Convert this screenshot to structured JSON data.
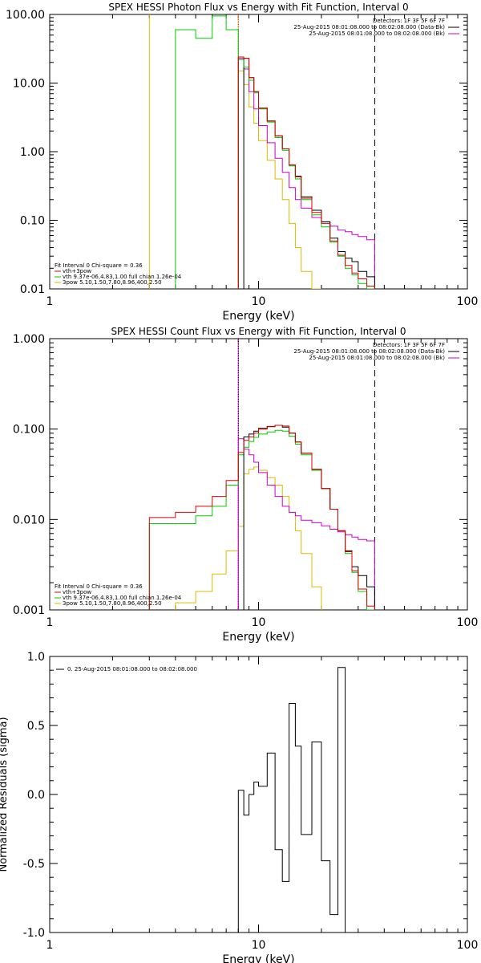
{
  "chart_data": [
    {
      "type": "line",
      "title": "SPEX HESSI Photon Flux vs Energy with Fit Function, Interval 0",
      "xlabel": "Energy (keV)",
      "ylabel": "",
      "x_scale": "log",
      "y_scale": "log",
      "xlim": [
        1,
        100
      ],
      "ylim": [
        0.01,
        100
      ],
      "x_ticks": [
        {
          "v": 1,
          "label": "1"
        },
        {
          "v": 10,
          "label": "10"
        },
        {
          "v": 100,
          "label": "100"
        }
      ],
      "y_ticks": [
        {
          "v": 0.01,
          "label": "0.01"
        },
        {
          "v": 0.1,
          "label": "0.10"
        },
        {
          "v": 1,
          "label": "1.00"
        },
        {
          "v": 10,
          "label": "10.00"
        },
        {
          "v": 100,
          "label": "100.00"
        }
      ],
      "legend_topright": [
        {
          "text": "Detectors: 1F 3F 5F 6F 7F",
          "color": ""
        },
        {
          "text": "25-Aug-2015 08:01:08.000 to 08:02:08.000 (Data-Bk)",
          "color": "#000000"
        },
        {
          "text": "25-Aug-2015 08:01:08.000 to 08:02:08.000 (Bk)",
          "color": "#cc00cc"
        }
      ],
      "legend_bottomleft": [
        {
          "text": "Fit Interval 0   Chi-square = 0.36",
          "color": ""
        },
        {
          "text": "vth+3pow",
          "color": "#dd0000"
        },
        {
          "text": "vth 9.37e-06,4.83,1.00   full chian 1.26e-04",
          "color": "#00cc00"
        },
        {
          "text": "3pow 5.10,1.50,7.80,8.96,400,2.50",
          "color": "#ddbb00"
        }
      ],
      "vlines": [
        {
          "x": 3.0,
          "color": "#ddbb00",
          "style": "solid"
        },
        {
          "x": 8.0,
          "color": "#ddbb00",
          "style": "solid"
        },
        {
          "x": 8.0,
          "color": "#cc00cc",
          "style": "dotted"
        },
        {
          "x": 36.0,
          "color": "#000000",
          "style": "dashed"
        }
      ],
      "series": [
        {
          "name": "",
          "color": "#00cc00",
          "edges": [
            4,
            5,
            6,
            7,
            8
          ],
          "values": [
            60,
            45,
            95,
            60
          ]
        },
        {
          "name": "",
          "color": "#ddbb00",
          "edges": [
            8,
            8.5,
            9,
            9.5,
            10,
            11,
            12,
            13,
            14,
            15,
            16,
            18,
            20
          ],
          "values": [
            15,
            9.5,
            4.5,
            2.6,
            1.45,
            0.75,
            0.4,
            0.2,
            0.09,
            0.04,
            0.018,
            0.01
          ]
        },
        {
          "name": "",
          "color": "#cc00cc",
          "edges": [
            8,
            8.5,
            9,
            9.5,
            10,
            11,
            12,
            13,
            14,
            15,
            16,
            18,
            20,
            22,
            24,
            26,
            28,
            30,
            33,
            36
          ],
          "values": [
            23,
            16,
            7.5,
            4.2,
            2.4,
            1.35,
            0.8,
            0.5,
            0.3,
            0.2,
            0.15,
            0.11,
            0.095,
            0.082,
            0.072,
            0.068,
            0.062,
            0.058,
            0.052
          ]
        },
        {
          "name": "",
          "color": "#000000",
          "edges": [
            8.5,
            9,
            9.5,
            10,
            11,
            12,
            13,
            14,
            15,
            16,
            18,
            20,
            22,
            24,
            26,
            28,
            30,
            33,
            36
          ],
          "values": [
            23,
            12,
            7.5,
            4.3,
            2.8,
            1.7,
            1.1,
            0.64,
            0.44,
            0.22,
            0.14,
            0.095,
            0.055,
            0.035,
            0.028,
            0.025,
            0.018,
            0.015
          ]
        },
        {
          "name": "",
          "color": "#00cc00",
          "edges": [
            8,
            8.5,
            9,
            9.5,
            10,
            11,
            12,
            13,
            14,
            15,
            16,
            18,
            20,
            22,
            24,
            26,
            28,
            30,
            33,
            36
          ],
          "values": [
            22,
            17,
            11,
            7.2,
            4.2,
            2.7,
            1.6,
            1.05,
            0.62,
            0.4,
            0.2,
            0.12,
            0.08,
            0.048,
            0.03,
            0.02,
            0.016,
            0.012,
            0.01
          ]
        },
        {
          "name": "",
          "color": "#dd0000",
          "edges": [
            8,
            8.5,
            9,
            9.5,
            10,
            11,
            12,
            13,
            14,
            15,
            16,
            18,
            20,
            22,
            24,
            26,
            28,
            30,
            33,
            36
          ],
          "values": [
            24,
            23,
            12,
            7.5,
            4.3,
            2.8,
            1.7,
            1.1,
            0.64,
            0.43,
            0.21,
            0.13,
            0.09,
            0.05,
            0.031,
            0.022,
            0.017,
            0.014,
            0.011
          ]
        }
      ]
    },
    {
      "type": "line",
      "title": "SPEX HESSI Count Flux vs Energy with Fit Function, Interval 0",
      "xlabel": "Energy (keV)",
      "ylabel": "",
      "x_scale": "log",
      "y_scale": "log",
      "xlim": [
        1,
        100
      ],
      "ylim": [
        0.001,
        1
      ],
      "x_ticks": [
        {
          "v": 1,
          "label": "1"
        },
        {
          "v": 10,
          "label": "10"
        },
        {
          "v": 100,
          "label": "100"
        }
      ],
      "y_ticks": [
        {
          "v": 0.001,
          "label": "0.001"
        },
        {
          "v": 0.01,
          "label": "0.010"
        },
        {
          "v": 0.1,
          "label": "0.100"
        },
        {
          "v": 1,
          "label": "1.000"
        }
      ],
      "legend_topright": [
        {
          "text": "Detectors: 1F 3F 5F 6F 7F",
          "color": ""
        },
        {
          "text": "25-Aug-2015 08:01:08.000 to 08:02:08.000 (Data-Bk)",
          "color": "#000000"
        },
        {
          "text": "25-Aug-2015 08:01:08.000 to 08:02:08.000 (Bk)",
          "color": "#cc00cc"
        }
      ],
      "legend_bottomleft": [
        {
          "text": "Fit Interval 0   Chi-square = 0.36",
          "color": ""
        },
        {
          "text": "vth+3pow",
          "color": "#dd0000"
        },
        {
          "text": "vth 9.37e-06,4.83,1.00   full chian 1.26e-04",
          "color": "#00cc00"
        },
        {
          "text": "3pow 5.10,1.50,7.80,8.96,400,2.50",
          "color": "#ddbb00"
        }
      ],
      "vlines": [
        {
          "x": 8.0,
          "color": "#cc00cc",
          "style": "solid"
        },
        {
          "x": 8.0,
          "color": "#000000",
          "style": "dotted"
        },
        {
          "x": 36.0,
          "color": "#000000",
          "style": "dashed"
        }
      ],
      "series": [
        {
          "name": "",
          "color": "#ddbb00",
          "edges": [
            4,
            5,
            6,
            7,
            8,
            8.5,
            9,
            9.5,
            10,
            11,
            12,
            13,
            14,
            15,
            16,
            18,
            20
          ],
          "values": [
            0.0012,
            0.0016,
            0.0025,
            0.0045,
            0.0084,
            0.032,
            0.036,
            0.038,
            0.035,
            0.029,
            0.024,
            0.018,
            0.012,
            0.0075,
            0.0042,
            0.0018,
            0.001
          ]
        },
        {
          "name": "",
          "color": "#cc00cc",
          "edges": [
            8,
            8.5,
            9,
            9.5,
            10,
            11,
            12,
            13,
            14,
            15,
            16,
            18,
            20,
            22,
            24,
            26,
            28,
            30,
            33,
            36
          ],
          "values": [
            0.078,
            0.06,
            0.052,
            0.043,
            0.033,
            0.024,
            0.018,
            0.014,
            0.012,
            0.011,
            0.0098,
            0.0092,
            0.0085,
            0.0078,
            0.0073,
            0.0068,
            0.0064,
            0.006,
            0.0058
          ]
        },
        {
          "name": "",
          "color": "#00cc00",
          "edges": [
            3,
            4,
            5,
            6,
            7,
            8,
            8.5,
            9,
            9.5,
            10,
            11,
            12,
            13,
            14,
            15,
            16,
            18,
            20,
            22,
            24,
            26,
            28,
            30,
            33,
            36
          ],
          "values": [
            0.009,
            0.009,
            0.011,
            0.014,
            0.024,
            0.052,
            0.063,
            0.073,
            0.081,
            0.088,
            0.093,
            0.097,
            0.095,
            0.083,
            0.068,
            0.052,
            0.035,
            0.022,
            0.013,
            0.0075,
            0.0042,
            0.0026,
            0.0016,
            0.001
          ]
        },
        {
          "name": "",
          "color": "#000000",
          "edges": [
            8.5,
            9,
            9.5,
            10,
            11,
            12,
            13,
            14,
            15,
            16,
            18,
            20,
            22,
            24,
            26,
            28,
            30,
            33,
            36
          ],
          "values": [
            0.082,
            0.088,
            0.095,
            0.102,
            0.107,
            0.11,
            0.105,
            0.09,
            0.072,
            0.054,
            0.036,
            0.022,
            0.013,
            0.0075,
            0.0045,
            0.003,
            0.0024,
            0.0018
          ]
        },
        {
          "name": "",
          "color": "#dd0000",
          "edges": [
            3,
            4,
            5,
            6,
            7,
            8,
            8.5,
            9,
            9.5,
            10,
            11,
            12,
            13,
            14,
            15,
            16,
            18,
            20,
            22,
            24,
            26,
            28,
            30,
            33,
            36
          ],
          "values": [
            0.0105,
            0.012,
            0.014,
            0.018,
            0.027,
            0.055,
            0.075,
            0.082,
            0.09,
            0.1,
            0.106,
            0.11,
            0.108,
            0.09,
            0.072,
            0.054,
            0.036,
            0.022,
            0.013,
            0.0075,
            0.0044,
            0.0027,
            0.0017,
            0.0011
          ]
        }
      ]
    },
    {
      "type": "line",
      "title": "",
      "xlabel": "Energy (keV)",
      "ylabel": "Normalized Residuals (sigma)",
      "x_scale": "log",
      "y_scale": "linear",
      "xlim": [
        1,
        100
      ],
      "ylim": [
        -1,
        1
      ],
      "x_ticks": [
        {
          "v": 1,
          "label": "1"
        },
        {
          "v": 10,
          "label": "10"
        },
        {
          "v": 100,
          "label": "100"
        }
      ],
      "y_ticks": [
        {
          "v": -1,
          "label": "-1.0"
        },
        {
          "v": -0.5,
          "label": "-0.5"
        },
        {
          "v": 0,
          "label": "0.0"
        },
        {
          "v": 0.5,
          "label": "0.5"
        },
        {
          "v": 1,
          "label": "1.0"
        }
      ],
      "legend_topright": [],
      "legend_topleft": [
        {
          "text": "0. 25-Aug-2015 08:01:08.000 to 08:02:08.000",
          "color": "#000000"
        }
      ],
      "legend_bottomleft": [],
      "vlines": [],
      "series": [
        {
          "name": "",
          "color": "#000000",
          "edges": [
            8,
            8.5,
            9,
            9.5,
            10,
            11,
            12,
            13,
            14,
            15,
            16,
            18,
            20,
            22,
            24,
            26,
            28,
            30,
            33,
            36
          ],
          "values": [
            0.03,
            -0.15,
            0.0,
            0.09,
            0.06,
            0.3,
            -0.4,
            -0.63,
            0.66,
            0.35,
            -0.29,
            0.38,
            -0.48,
            -0.87,
            0.92,
            -1.0,
            -1.0,
            -1.0,
            -1.0
          ]
        }
      ]
    }
  ]
}
